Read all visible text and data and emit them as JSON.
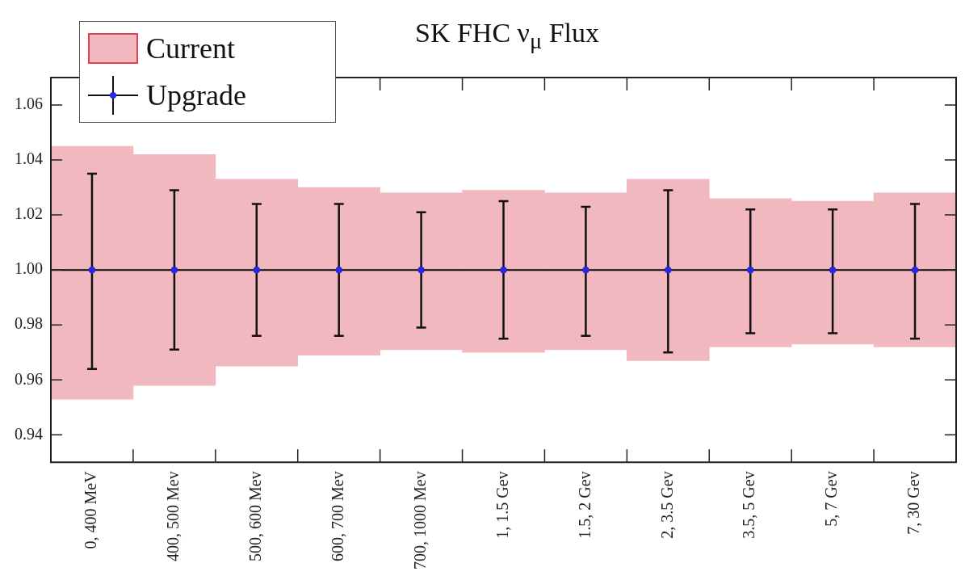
{
  "chart_data": {
    "type": "bar",
    "title": "SK FHC ν$_{μ}$ Flux",
    "categories": [
      "0, 400 MeV",
      "400, 500 Mev",
      "500, 600 Mev",
      "600, 700 Mev",
      "700, 1000 Mev",
      "1, 1.5 Gev",
      "1.5, 2 Gev",
      "2, 3.5 Gev",
      "3.5, 5 Gev",
      "5, 7 Gev",
      "7, 30 Gev"
    ],
    "series": [
      {
        "name": "Current",
        "color": "#f2b8c0",
        "base": [
          0.953,
          0.958,
          0.965,
          0.969,
          0.971,
          0.97,
          0.971,
          0.967,
          0.972,
          0.973,
          0.972
        ],
        "values": [
          0.092,
          0.084,
          0.068,
          0.061,
          0.057,
          0.059,
          0.057,
          0.066,
          0.054,
          0.052,
          0.056
        ]
      },
      {
        "name": "Upgrade",
        "type": "scatter",
        "color": "#2828e8",
        "marker": "circle",
        "x": [
          "0, 400 MeV",
          "400, 500 Mev",
          "500, 600 Mev",
          "600, 700 Mev",
          "700, 1000 Mev",
          "1, 1.5 Gev",
          "1.5, 2 Gev",
          "2, 3.5 Gev",
          "3.5, 5 Gev",
          "5, 7 Gev",
          "7, 30 Gev"
        ],
        "values": [
          1,
          1,
          1,
          1,
          1,
          1,
          1,
          1,
          1,
          1,
          1
        ],
        "errors": [
          [
            0.964,
            1.035
          ],
          [
            0.971,
            1.029
          ],
          [
            0.976,
            1.024
          ],
          [
            0.976,
            1.024
          ],
          [
            0.979,
            1.021
          ],
          [
            0.975,
            1.025
          ],
          [
            0.976,
            1.023
          ],
          [
            0.97,
            1.029
          ],
          [
            0.977,
            1.022
          ],
          [
            0.977,
            1.022
          ],
          [
            0.975,
            1.024
          ]
        ]
      }
    ],
    "ref_lines": [
      {
        "axis": "y",
        "value": 1,
        "color": "#000000"
      }
    ],
    "ylim": [
      0.93,
      1.07
    ],
    "yticks": [
      0.94,
      0.96,
      0.98,
      {
        "value": 1,
        "label": "1.00"
      },
      1.02,
      1.04,
      1.06
    ],
    "grid": false,
    "legend": "top left"
  }
}
